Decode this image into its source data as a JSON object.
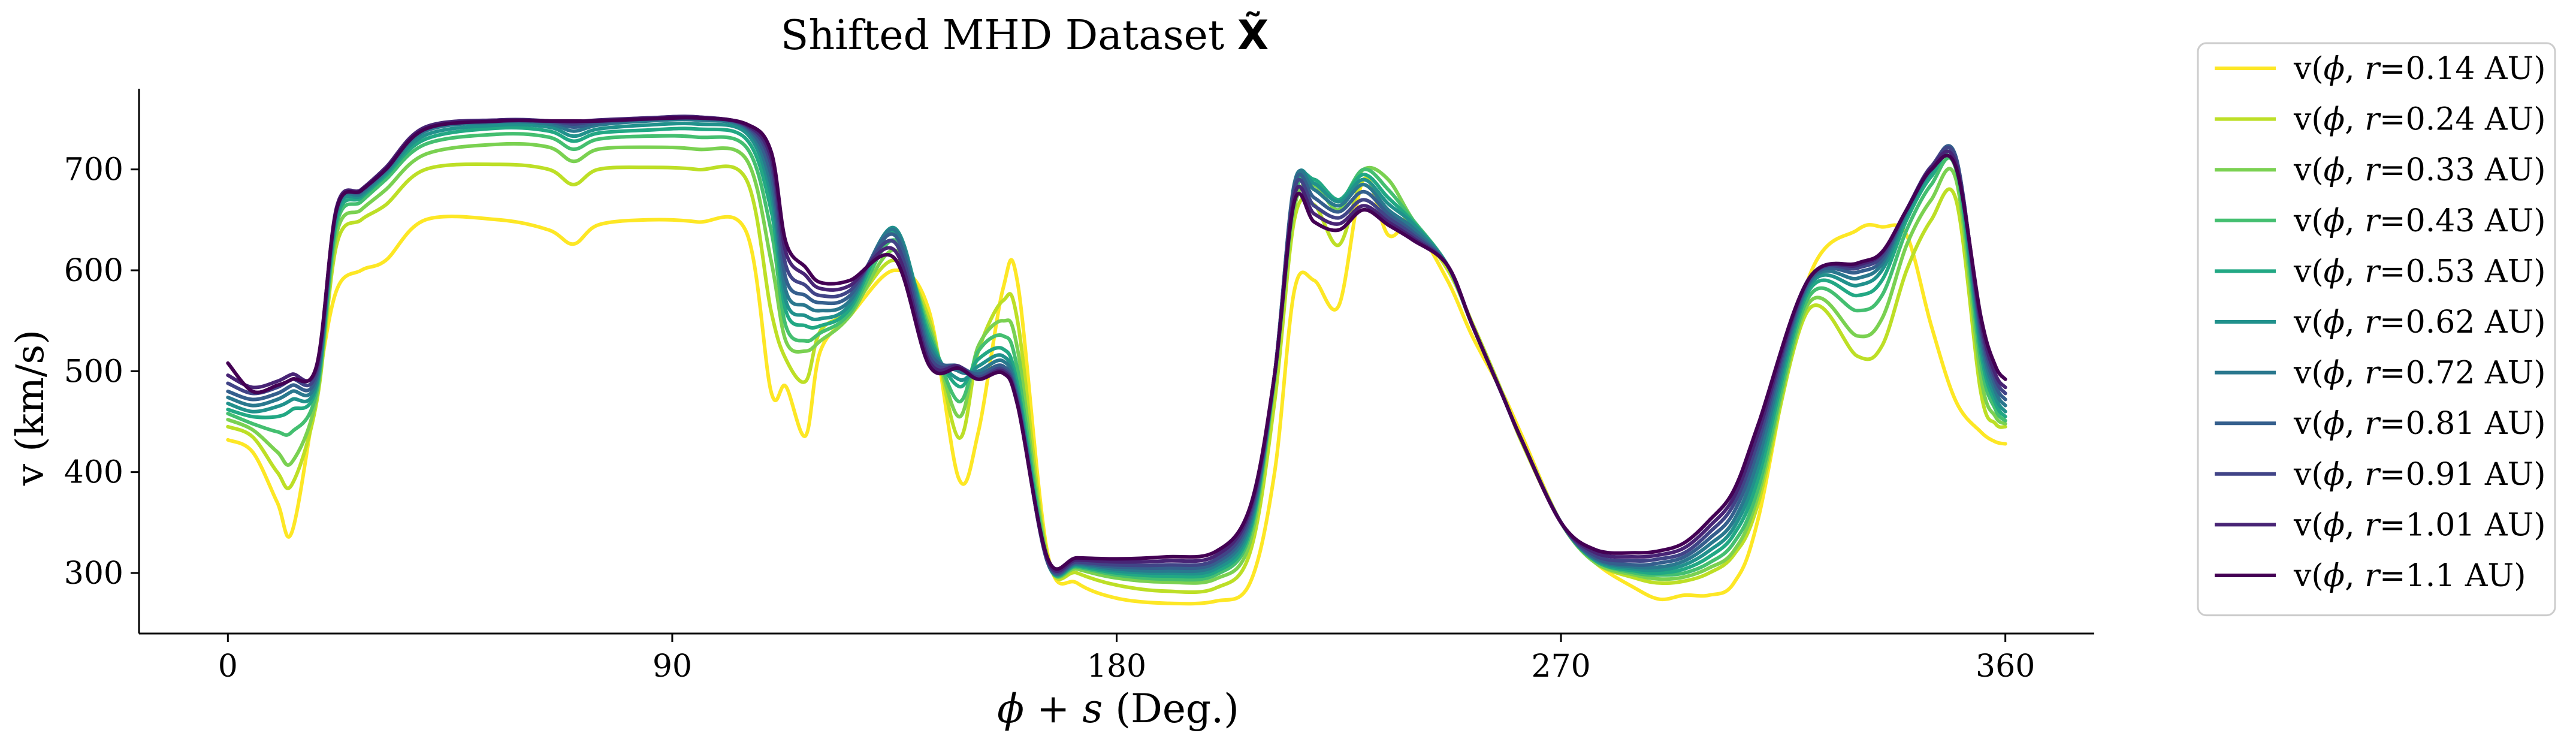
{
  "chart_data": {
    "type": "line",
    "title": "Shifted MHD Dataset X̃",
    "title_parts": [
      "Shifted MHD Dataset ",
      "X̃"
    ],
    "xlabel": "ϕ + s (Deg.)",
    "xlabel_parts": [
      "ϕ",
      " + ",
      "s",
      " (Deg.)"
    ],
    "ylabel": "v (km/s)",
    "xlim": [
      -18,
      378
    ],
    "ylim": [
      240,
      780
    ],
    "xticks": [
      0,
      90,
      180,
      270,
      360
    ],
    "xtick_labels": [
      "0",
      "90",
      "180",
      "270",
      "360"
    ],
    "yticks": [
      300,
      400,
      500,
      600,
      700
    ],
    "ytick_labels": [
      "300",
      "400",
      "500",
      "600",
      "700"
    ],
    "grid": false,
    "legend_position": "outside-right",
    "colormap": "viridis (reversed order: yellow at 0.14 AU to dark purple at 1.1 AU)",
    "series": [
      {
        "name": "v(ϕ, r=0.14 AU)",
        "r_label": "0.14 AU",
        "color": "#fde725"
      },
      {
        "name": "v(ϕ, r=0.24 AU)",
        "r_label": "0.24 AU",
        "color": "#bddf26"
      },
      {
        "name": "v(ϕ, r=0.33 AU)",
        "r_label": "0.33 AU",
        "color": "#7ad151"
      },
      {
        "name": "v(ϕ, r=0.43 AU)",
        "r_label": "0.43 AU",
        "color": "#44bf70"
      },
      {
        "name": "v(ϕ, r=0.53 AU)",
        "r_label": "0.53 AU",
        "color": "#22a884"
      },
      {
        "name": "v(ϕ, r=0.62 AU)",
        "r_label": "0.62 AU",
        "color": "#21918c"
      },
      {
        "name": "v(ϕ, r=0.72 AU)",
        "r_label": "0.72 AU",
        "color": "#2a788e"
      },
      {
        "name": "v(ϕ, r=0.81 AU)",
        "r_label": "0.81 AU",
        "color": "#355f8d"
      },
      {
        "name": "v(ϕ, r=0.91 AU)",
        "r_label": "0.91 AU",
        "color": "#414487"
      },
      {
        "name": "v(ϕ, r=1.01 AU)",
        "r_label": "1.01 AU",
        "color": "#482475"
      },
      {
        "name": "v(ϕ, r=1.1 AU)",
        "r_label": "1.1 AU",
        "color": "#440154"
      }
    ],
    "x": [
      0,
      5,
      10,
      13,
      18,
      22,
      27,
      32,
      40,
      55,
      65,
      70,
      75,
      85,
      95,
      105,
      110,
      113,
      117,
      120,
      126,
      135,
      142,
      148,
      152,
      157,
      160,
      166,
      172,
      180,
      190,
      200,
      207,
      212,
      216,
      220,
      225,
      230,
      235,
      240,
      247,
      252,
      258,
      262,
      270,
      277,
      285,
      290,
      295,
      300,
      305,
      310,
      320,
      330,
      335,
      340,
      345,
      350,
      355,
      358,
      360
    ],
    "series_values": [
      [
        432,
        420,
        370,
        341,
        480,
        580,
        600,
        610,
        650,
        650,
        640,
        626,
        645,
        650,
        648,
        638,
        480,
        485,
        436,
        520,
        555,
        600,
        560,
        394,
        440,
        582,
        586,
        320,
        290,
        275,
        270,
        272,
        290,
        400,
        580,
        590,
        565,
        690,
        635,
        645,
        590,
        535,
        480,
        437,
        350,
        310,
        285,
        274,
        278,
        278,
        290,
        355,
        590,
        640,
        643,
        635,
        545,
        470,
        440,
        430,
        428
      ],
      [
        445,
        435,
        400,
        388,
        470,
        625,
        650,
        665,
        700,
        705,
        700,
        685,
        700,
        702,
        700,
        690,
        560,
        512,
        490,
        540,
        560,
        610,
        552,
        434,
        520,
        570,
        548,
        316,
        300,
        288,
        282,
        285,
        320,
        470,
        650,
        665,
        625,
        690,
        656,
        645,
        601,
        548,
        480,
        430,
        350,
        310,
        295,
        290,
        292,
        300,
        318,
        370,
        560,
        515,
        525,
        600,
        650,
        670,
        480,
        448,
        445
      ],
      [
        452,
        442,
        420,
        410,
        475,
        636,
        660,
        680,
        715,
        725,
        722,
        708,
        720,
        722,
        720,
        710,
        610,
        530,
        520,
        530,
        555,
        620,
        545,
        455,
        525,
        550,
        520,
        314,
        304,
        295,
        291,
        294,
        330,
        490,
        662,
        684,
        660,
        700,
        690,
        650,
        605,
        546,
        478,
        432,
        350,
        310,
        298,
        294,
        296,
        305,
        322,
        378,
        566,
        535,
        552,
        625,
        670,
        690,
        495,
        455,
        448
      ],
      [
        458,
        448,
        440,
        440,
        480,
        645,
        668,
        690,
        725,
        735,
        732,
        720,
        730,
        733,
        732,
        722,
        640,
        545,
        530,
        538,
        558,
        630,
        540,
        470,
        520,
        535,
        500,
        312,
        306,
        298,
        294,
        298,
        338,
        495,
        672,
        690,
        668,
        700,
        680,
        650,
        605,
        546,
        478,
        432,
        350,
        312,
        300,
        298,
        300,
        310,
        330,
        385,
        572,
        560,
        575,
        640,
        685,
        700,
        510,
        462,
        451
      ],
      [
        462,
        455,
        455,
        462,
        485,
        650,
        672,
        694,
        730,
        741,
        738,
        728,
        736,
        739,
        740,
        730,
        660,
        560,
        545,
        545,
        562,
        638,
        535,
        485,
        512,
        522,
        485,
        311,
        307,
        300,
        297,
        301,
        342,
        497,
        678,
        690,
        670,
        695,
        672,
        648,
        605,
        546,
        478,
        432,
        350,
        312,
        302,
        300,
        304,
        316,
        338,
        395,
        578,
        575,
        590,
        650,
        693,
        706,
        520,
        468,
        455
      ],
      [
        468,
        460,
        465,
        472,
        488,
        655,
        674,
        696,
        734,
        744,
        742,
        733,
        740,
        744,
        745,
        736,
        675,
        570,
        555,
        552,
        566,
        642,
        530,
        492,
        505,
        515,
        478,
        311,
        308,
        302,
        300,
        304,
        346,
        497,
        684,
        686,
        668,
        690,
        666,
        646,
        605,
        546,
        478,
        432,
        350,
        313,
        304,
        303,
        308,
        322,
        345,
        405,
        582,
        585,
        600,
        655,
        698,
        710,
        527,
        474,
        460
      ],
      [
        474,
        466,
        472,
        480,
        492,
        658,
        676,
        698,
        738,
        747,
        745,
        738,
        744,
        748,
        749,
        740,
        685,
        580,
        565,
        560,
        570,
        640,
        525,
        500,
        500,
        510,
        474,
        311,
        309,
        304,
        302,
        307,
        350,
        497,
        686,
        680,
        664,
        685,
        660,
        642,
        605,
        546,
        478,
        432,
        350,
        314,
        306,
        306,
        312,
        328,
        352,
        414,
        585,
        592,
        606,
        658,
        700,
        712,
        534,
        480,
        466
      ],
      [
        480,
        472,
        478,
        486,
        496,
        660,
        678,
        700,
        740,
        748,
        747,
        742,
        746,
        750,
        751,
        742,
        695,
        592,
        575,
        568,
        575,
        635,
        520,
        505,
        497,
        505,
        470,
        311,
        310,
        306,
        305,
        310,
        354,
        497,
        684,
        672,
        658,
        678,
        656,
        638,
        605,
        546,
        478,
        432,
        350,
        315,
        308,
        310,
        316,
        334,
        360,
        424,
        587,
        598,
        610,
        660,
        702,
        712,
        540,
        486,
        472
      ],
      [
        488,
        478,
        484,
        492,
        500,
        661,
        679,
        701,
        741,
        749,
        748,
        745,
        748,
        751,
        752,
        743,
        705,
        605,
        585,
        575,
        580,
        628,
        515,
        505,
        494,
        502,
        468,
        312,
        311,
        308,
        308,
        313,
        358,
        497,
        680,
        664,
        652,
        670,
        652,
        635,
        605,
        546,
        478,
        432,
        350,
        317,
        312,
        314,
        320,
        340,
        368,
        432,
        589,
        602,
        614,
        660,
        703,
        710,
        545,
        492,
        478
      ],
      [
        496,
        484,
        490,
        497,
        504,
        662,
        680,
        702,
        742,
        749,
        748,
        747,
        749,
        751,
        752,
        744,
        712,
        618,
        595,
        582,
        585,
        620,
        510,
        505,
        492,
        500,
        466,
        313,
        313,
        311,
        312,
        317,
        362,
        497,
        674,
        656,
        646,
        664,
        648,
        632,
        605,
        546,
        478,
        432,
        350,
        320,
        316,
        318,
        325,
        346,
        375,
        440,
        590,
        605,
        617,
        660,
        702,
        706,
        550,
        497,
        484
      ],
      [
        508,
        480,
        486,
        492,
        506,
        660,
        679,
        700,
        740,
        748,
        748,
        748,
        748,
        750,
        751,
        745,
        718,
        628,
        603,
        588,
        590,
        612,
        506,
        503,
        492,
        498,
        465,
        315,
        315,
        314,
        316,
        321,
        365,
        497,
        668,
        648,
        640,
        660,
        645,
        630,
        605,
        546,
        478,
        432,
        350,
        323,
        320,
        322,
        330,
        352,
        382,
        448,
        590,
        607,
        618,
        660,
        700,
        702,
        555,
        505,
        492
      ]
    ]
  }
}
